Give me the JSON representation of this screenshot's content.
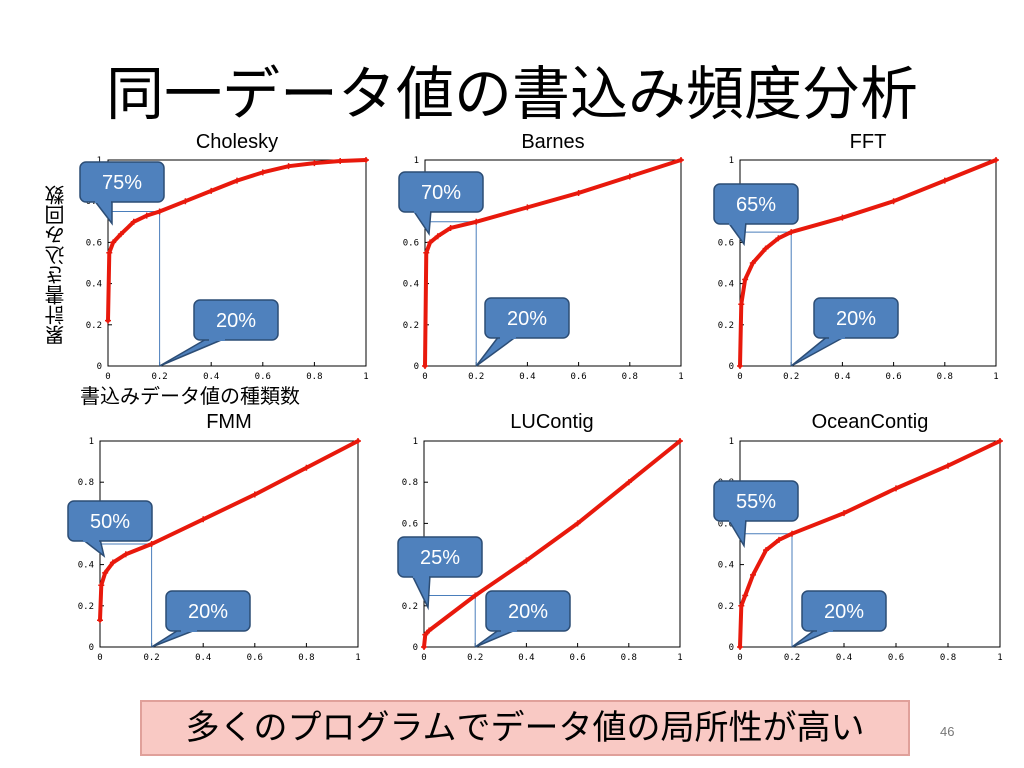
{
  "slide": {
    "title": "同一データ値の書込み頻度分析",
    "ylabel": "累計書き込み回数",
    "xlabel": "書込みデータ値の種類数",
    "conclusion": "多くのプログラムでデータ値の局所性が高い",
    "page_number": "46"
  },
  "colors": {
    "curve": "#e8190c",
    "callout_fill": "#4f81bd",
    "callout_stroke": "#2c4d75",
    "guide": "#4a7ebb",
    "conclusion_bg": "#f9c9c4"
  },
  "chart_data": [
    {
      "type": "line",
      "title": "Cholesky",
      "x": [
        0,
        0.005,
        0.02,
        0.05,
        0.1,
        0.15,
        0.2,
        0.3,
        0.4,
        0.5,
        0.6,
        0.7,
        0.8,
        0.9,
        1.0
      ],
      "y": [
        0.22,
        0.55,
        0.6,
        0.64,
        0.7,
        0.73,
        0.75,
        0.8,
        0.85,
        0.9,
        0.94,
        0.97,
        0.985,
        0.995,
        1.0
      ],
      "xlim": [
        0,
        1
      ],
      "ylim": [
        0,
        1
      ],
      "xticks": [
        "0",
        "0.2",
        "0.4",
        "0.6",
        "0.8",
        "1"
      ],
      "yticks": [
        "0",
        "0.2",
        "0.4",
        "0.6",
        "0.8",
        "1"
      ],
      "callouts": [
        "75%",
        "20%"
      ],
      "marker": {
        "x": 0.2,
        "y": 0.75
      }
    },
    {
      "type": "line",
      "title": "Barnes",
      "x": [
        0,
        0.005,
        0.02,
        0.05,
        0.1,
        0.2,
        0.4,
        0.6,
        0.8,
        1.0
      ],
      "y": [
        0.0,
        0.55,
        0.6,
        0.63,
        0.67,
        0.7,
        0.77,
        0.84,
        0.92,
        1.0
      ],
      "xlim": [
        0,
        1
      ],
      "ylim": [
        0,
        1
      ],
      "xticks": [
        "0",
        "0.2",
        "0.4",
        "0.6",
        "0.8",
        "1"
      ],
      "yticks": [
        "0",
        "0.2",
        "0.4",
        "0.6",
        "0.8",
        "1"
      ],
      "callouts": [
        "70%",
        "20%"
      ],
      "marker": {
        "x": 0.2,
        "y": 0.7
      }
    },
    {
      "type": "line",
      "title": "FFT",
      "x": [
        0,
        0.005,
        0.02,
        0.05,
        0.1,
        0.15,
        0.2,
        0.4,
        0.6,
        0.8,
        1.0
      ],
      "y": [
        0.0,
        0.3,
        0.42,
        0.5,
        0.57,
        0.62,
        0.65,
        0.72,
        0.8,
        0.9,
        1.0
      ],
      "xlim": [
        0,
        1
      ],
      "ylim": [
        0,
        1
      ],
      "xticks": [
        "0",
        "0.2",
        "0.4",
        "0.6",
        "0.8",
        "1"
      ],
      "yticks": [
        "0",
        "0.2",
        "0.4",
        "0.6",
        "0.8",
        "1"
      ],
      "callouts": [
        "65%",
        "20%"
      ],
      "marker": {
        "x": 0.2,
        "y": 0.65
      }
    },
    {
      "type": "line",
      "title": "FMM",
      "x": [
        0,
        0.005,
        0.02,
        0.05,
        0.1,
        0.2,
        0.4,
        0.6,
        0.8,
        1.0
      ],
      "y": [
        0.13,
        0.3,
        0.36,
        0.41,
        0.45,
        0.5,
        0.62,
        0.74,
        0.87,
        1.0
      ],
      "xlim": [
        0,
        1
      ],
      "ylim": [
        0,
        1
      ],
      "xticks": [
        "0",
        "0.2",
        "0.4",
        "0.6",
        "0.8",
        "1"
      ],
      "yticks": [
        "0",
        "0.2",
        "0.4",
        "0.6",
        "0.8",
        "1"
      ],
      "callouts": [
        "50%",
        "20%"
      ],
      "marker": {
        "x": 0.2,
        "y": 0.5
      }
    },
    {
      "type": "line",
      "title": "LUContig",
      "x": [
        0,
        0.005,
        0.02,
        0.2,
        0.4,
        0.6,
        0.8,
        1.0
      ],
      "y": [
        0.0,
        0.06,
        0.08,
        0.25,
        0.42,
        0.6,
        0.8,
        1.0
      ],
      "xlim": [
        0,
        1
      ],
      "ylim": [
        0,
        1
      ],
      "xticks": [
        "0",
        "0.2",
        "0.4",
        "0.6",
        "0.8",
        "1"
      ],
      "yticks": [
        "0",
        "0.2",
        "0.4",
        "0.6",
        "0.8",
        "1"
      ],
      "callouts": [
        "25%",
        "20%"
      ],
      "marker": {
        "x": 0.2,
        "y": 0.25
      }
    },
    {
      "type": "line",
      "title": "OceanContig",
      "x": [
        0,
        0.005,
        0.02,
        0.05,
        0.1,
        0.15,
        0.2,
        0.4,
        0.6,
        0.8,
        1.0
      ],
      "y": [
        0.0,
        0.2,
        0.25,
        0.35,
        0.47,
        0.52,
        0.55,
        0.65,
        0.77,
        0.88,
        1.0
      ],
      "xlim": [
        0,
        1
      ],
      "ylim": [
        0,
        1
      ],
      "xticks": [
        "0",
        "0.2",
        "0.4",
        "0.6",
        "0.8",
        "1"
      ],
      "yticks": [
        "0",
        "0.2",
        "0.4",
        "0.6",
        "0.8",
        "1"
      ],
      "callouts": [
        "55%",
        "20%"
      ],
      "marker": {
        "x": 0.2,
        "y": 0.55
      }
    }
  ]
}
